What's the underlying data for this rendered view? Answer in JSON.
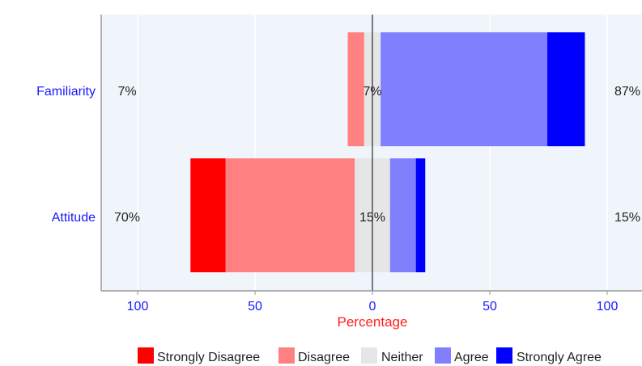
{
  "chart_data": {
    "type": "bar",
    "orientation": "horizontal",
    "stacked": true,
    "diverging": true,
    "categories": [
      "Familiarity",
      "Attitude"
    ],
    "series": [
      {
        "name": "Strongly Disagree",
        "color": "#ff0000",
        "values": [
          0,
          15
        ]
      },
      {
        "name": "Disagree",
        "color": "#ff8080",
        "values": [
          7,
          55
        ]
      },
      {
        "name": "Neither",
        "color": "#e6e6e6",
        "values": [
          7,
          15
        ]
      },
      {
        "name": "Agree",
        "color": "#8080ff",
        "values": [
          71,
          11
        ]
      },
      {
        "name": "Strongly Agree",
        "color": "#0000ff",
        "values": [
          16,
          4
        ]
      }
    ],
    "summary_labels": {
      "disagree": [
        "7%",
        "70%"
      ],
      "neither": [
        "7%",
        "15%"
      ],
      "agree": [
        "87%",
        "15%"
      ]
    },
    "xlabel": "Percentage",
    "xlim": [
      -100,
      100
    ],
    "xticks": [
      -100,
      -50,
      0,
      50,
      100
    ],
    "xtick_labels": [
      "100",
      "50",
      "0",
      "50",
      "100"
    ],
    "grid": true,
    "legend_position": "bottom",
    "colors": {
      "plot_bg": "#f0f5fc",
      "outer_bg": "#ffffff",
      "axis_text": "#1a1aff",
      "axis_title": "#ff2020"
    }
  }
}
